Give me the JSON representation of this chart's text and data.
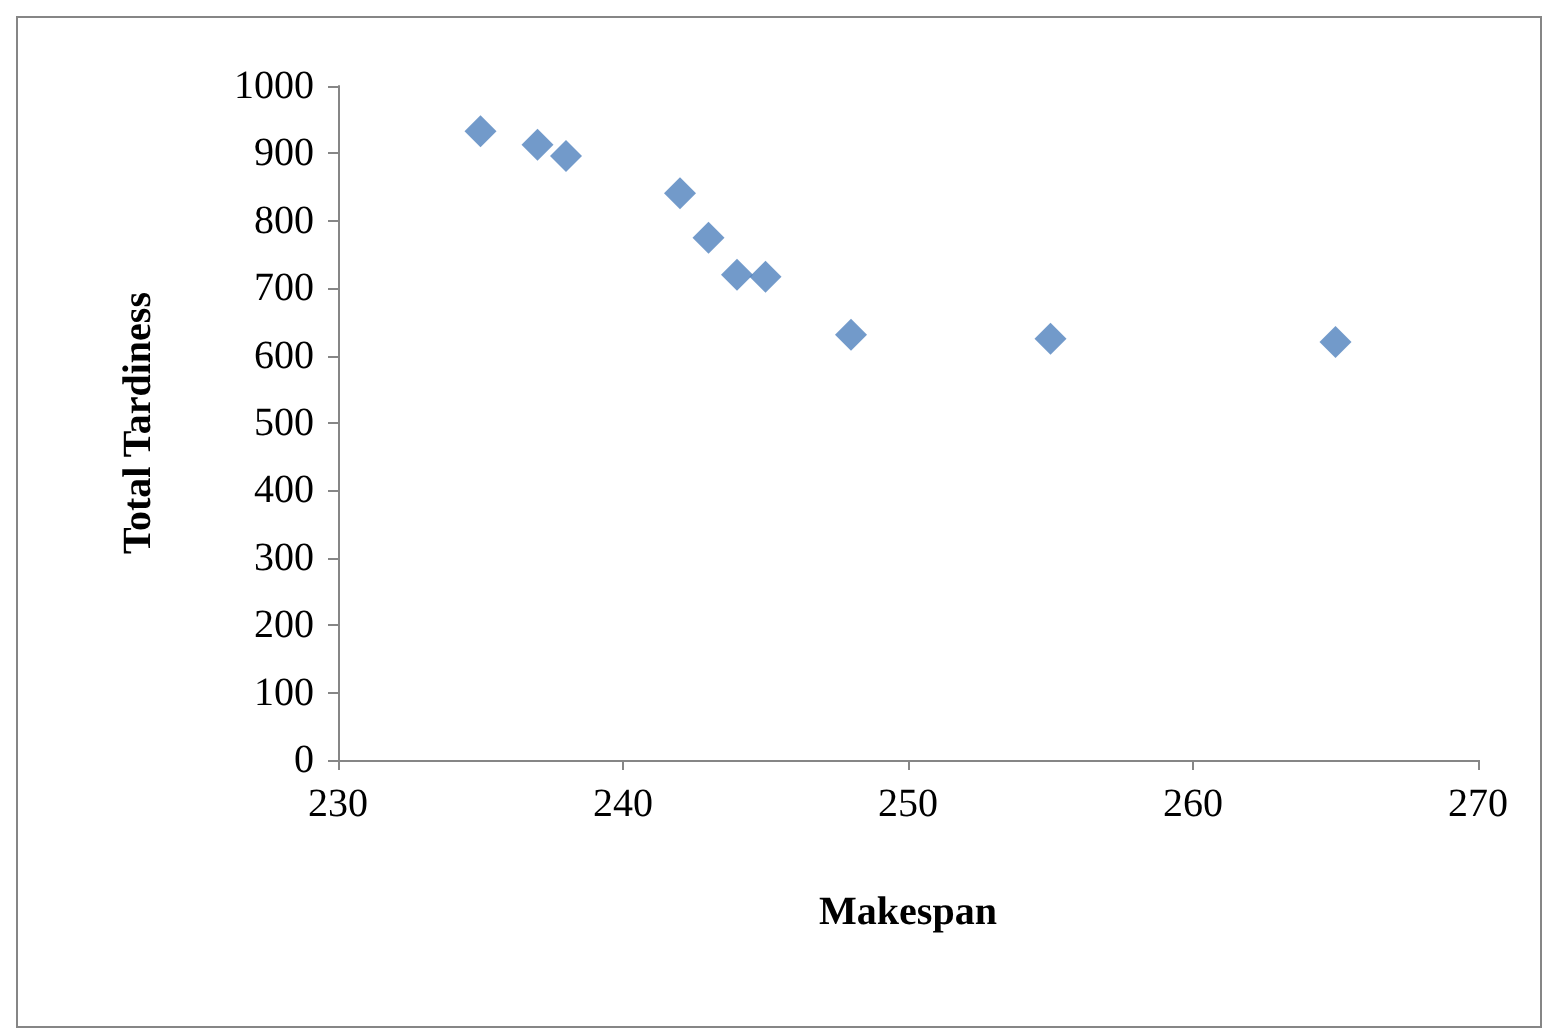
{
  "chart_data": {
    "type": "scatter",
    "xlabel": "Makespan",
    "ylabel": "Total Tardiness",
    "x": [
      235,
      237,
      238,
      242,
      243,
      244,
      245,
      248,
      255,
      265
    ],
    "values": [
      933,
      913,
      896,
      841,
      775,
      720,
      717,
      631,
      625,
      620
    ],
    "color": "#4f81bd",
    "marker": "diamond",
    "xlim": [
      230,
      270
    ],
    "xticks": [
      230,
      240,
      250,
      260,
      270
    ],
    "ylim": [
      0,
      1000
    ],
    "yticks": [
      0,
      100,
      200,
      300,
      400,
      500,
      600,
      700,
      800,
      900,
      1000
    ],
    "grid": false
  }
}
